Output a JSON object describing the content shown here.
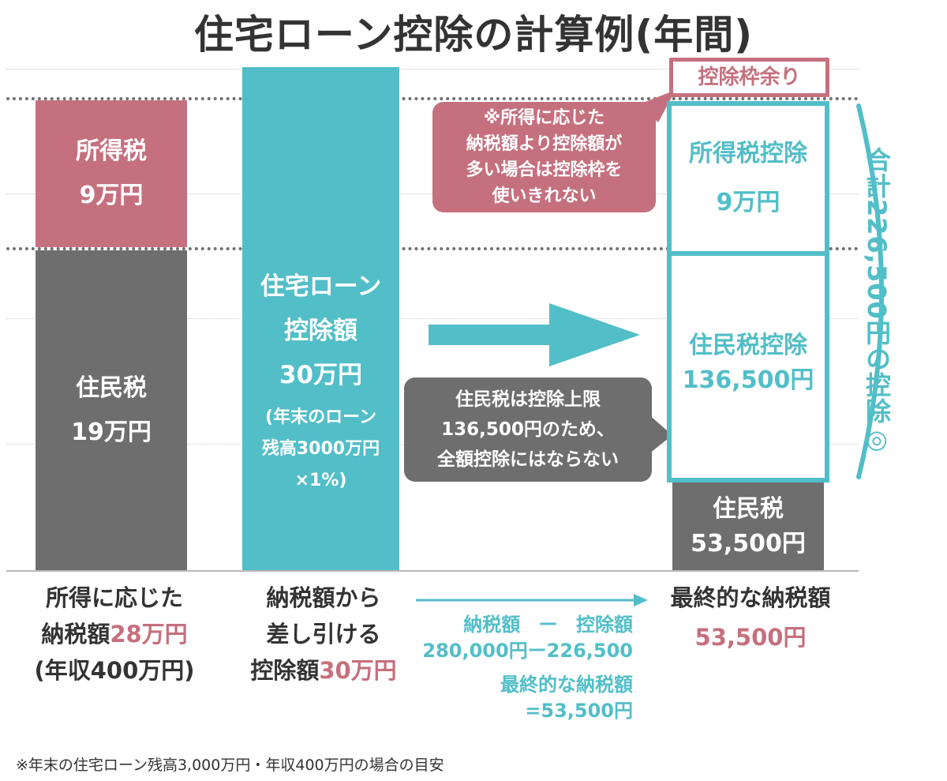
{
  "title": "住宅ローン控除の計算例(年間)",
  "bar1": {
    "top_label": "所得税",
    "top_value": "9万円",
    "bottom_label": "住民税",
    "bottom_value": "19万円"
  },
  "bar2": {
    "line1": "住宅ローン",
    "line2": "控除額",
    "line3": "30万円",
    "note1": "(年末のローン",
    "note2": "残高3000万円",
    "note3": "×1%)"
  },
  "surplus_label": "控除枠余り",
  "bubble_pink": [
    "※所得に応じた",
    "納税額より控除額が",
    "多い場合は控除枠を",
    "使いきれない"
  ],
  "bubble_gray": [
    "住民税は控除上限",
    "136,500円のため、",
    "全額控除にはならない"
  ],
  "box_income": {
    "label": "所得税控除",
    "value": "9万円"
  },
  "box_resident": {
    "label": "住民税控除",
    "value": "136,500円"
  },
  "residual": {
    "label": "住民税",
    "value": "53,500円"
  },
  "total_label": "合計226,500円の控除◎",
  "caption1": {
    "line1": "所得に応じた",
    "line2_pre": "納税額",
    "line2_hl": "28万円",
    "line3": "(年収400万円)"
  },
  "caption2": {
    "line1": "納税額から",
    "line2": "差し引ける",
    "line3_pre": "控除額",
    "line3_hl": "30万円"
  },
  "calc": {
    "row1a": "納税額",
    "row1b": "ー",
    "row1c": "控除額",
    "row2": "280,000円ー226,500",
    "row3": "最終的な納税額",
    "row4": "=53,500円"
  },
  "caption3": {
    "line1": "最終的な納税額",
    "line2": "53,500円"
  },
  "footnote": "※年末の住宅ローン残高3,000万円・年収400万円の場合の目安",
  "colors": {
    "pink": "#c5707e",
    "teal": "#52bec8",
    "gray": "#6e6e6e"
  }
}
